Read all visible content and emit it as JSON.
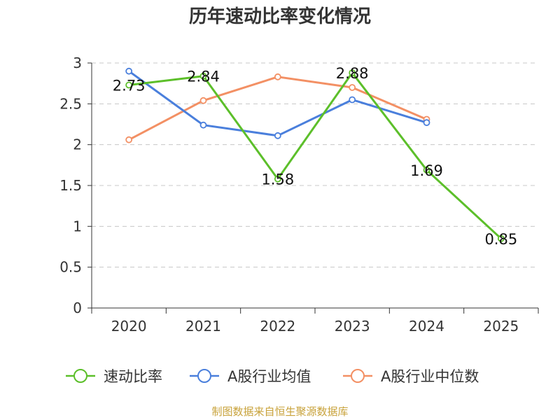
{
  "chart_data": {
    "type": "line",
    "title": "历年速动比率变化情况",
    "categories": [
      "2020",
      "2021",
      "2022",
      "2023",
      "2024",
      "2025"
    ],
    "y_ticks": [
      "0",
      "0.5",
      "1",
      "1.5",
      "2",
      "2.5",
      "3"
    ],
    "ylim": [
      0,
      3
    ],
    "grid": true,
    "legend_position": "bottom",
    "series": [
      {
        "name": "速动比率",
        "color": "#5cbf2a",
        "values": [
          2.73,
          2.84,
          1.58,
          2.88,
          1.69,
          0.85
        ],
        "labels": [
          "2.73",
          "2.84",
          "1.58",
          "2.88",
          "1.69",
          "0.85"
        ]
      },
      {
        "name": "A股行业均值",
        "color": "#4a7fdc",
        "values": [
          2.9,
          2.24,
          2.11,
          2.55,
          2.27,
          null
        ]
      },
      {
        "name": "A股行业中位数",
        "color": "#f39064",
        "values": [
          2.06,
          2.54,
          2.83,
          2.7,
          2.31,
          null
        ]
      }
    ],
    "source": "制图数据来自恒生聚源数据库"
  }
}
